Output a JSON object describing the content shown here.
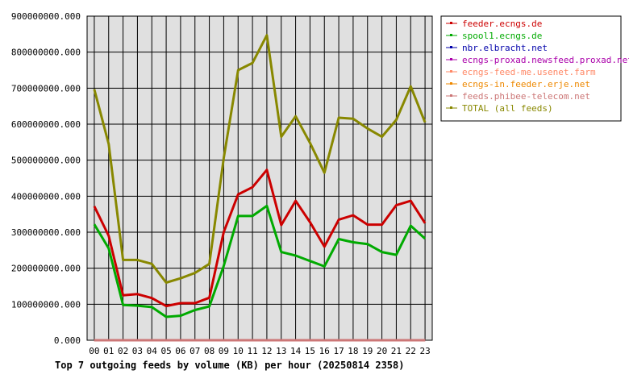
{
  "chart_data": {
    "type": "line",
    "title": "Top 7 outgoing feeds by volume (KB) per hour (20250814 2358)",
    "x": [
      "00",
      "01",
      "02",
      "03",
      "04",
      "05",
      "06",
      "07",
      "08",
      "09",
      "10",
      "11",
      "12",
      "13",
      "14",
      "15",
      "16",
      "17",
      "18",
      "19",
      "20",
      "21",
      "22",
      "23"
    ],
    "ylim": [
      0,
      900000000
    ],
    "yticks": [
      "0.000",
      "100000000.000",
      "200000000.000",
      "300000000.000",
      "400000000.000",
      "500000000.000",
      "600000000.000",
      "700000000.000",
      "800000000.000",
      "900000000.000"
    ],
    "grid": true,
    "legend_position": "right",
    "series": [
      {
        "name": "feeder.ecngs.de",
        "color": "#cc0000",
        "values": [
          372000000,
          290000000,
          125000000,
          128000000,
          117000000,
          95000000,
          103000000,
          103000000,
          118000000,
          300000000,
          405000000,
          425000000,
          473000000,
          320000000,
          387000000,
          328000000,
          260000000,
          335000000,
          347000000,
          321000000,
          321000000,
          375000000,
          387000000,
          325000000
        ]
      },
      {
        "name": "spool1.ecngs.de",
        "color": "#00aa00",
        "values": [
          322000000,
          255000000,
          98000000,
          96000000,
          92000000,
          65000000,
          68000000,
          84000000,
          94000000,
          206000000,
          345000000,
          345000000,
          373000000,
          245000000,
          235000000,
          220000000,
          205000000,
          281000000,
          272000000,
          267000000,
          245000000,
          237000000,
          318000000,
          282000000
        ]
      },
      {
        "name": "nbr.elbracht.net",
        "color": "#0000aa",
        "values": [
          0,
          0,
          0,
          0,
          0,
          0,
          0,
          0,
          0,
          0,
          0,
          0,
          0,
          0,
          0,
          0,
          0,
          0,
          0,
          0,
          0,
          0,
          0,
          0
        ]
      },
      {
        "name": "ecngs-proxad.newsfeed.proxad.net",
        "color": "#aa00aa",
        "values": [
          0,
          0,
          0,
          0,
          0,
          0,
          0,
          0,
          0,
          0,
          0,
          0,
          0,
          0,
          0,
          0,
          0,
          0,
          0,
          0,
          0,
          0,
          0,
          0
        ]
      },
      {
        "name": "ecngs-feed-me.usenet.farm",
        "color": "#ff8866",
        "values": [
          0,
          0,
          0,
          0,
          0,
          0,
          0,
          0,
          0,
          0,
          0,
          0,
          0,
          0,
          0,
          0,
          0,
          0,
          0,
          0,
          0,
          0,
          0,
          0
        ]
      },
      {
        "name": "ecngs-in.feeder.erje.net",
        "color": "#ee8800",
        "values": [
          0,
          0,
          0,
          0,
          0,
          0,
          0,
          0,
          0,
          0,
          0,
          0,
          0,
          0,
          0,
          0,
          0,
          0,
          0,
          0,
          0,
          0,
          0,
          0
        ]
      },
      {
        "name": "feeds.phibee-telecom.net",
        "color": "#cc7777",
        "values": [
          0,
          0,
          0,
          0,
          0,
          0,
          0,
          0,
          0,
          0,
          0,
          0,
          0,
          0,
          0,
          0,
          0,
          0,
          0,
          0,
          0,
          0,
          0,
          0
        ]
      },
      {
        "name": "TOTAL (all feeds)",
        "color": "#888800",
        "values": [
          697000000,
          545000000,
          223000000,
          223000000,
          212000000,
          160000000,
          172000000,
          187000000,
          212000000,
          505000000,
          750000000,
          770000000,
          847000000,
          565000000,
          622000000,
          548000000,
          465000000,
          618000000,
          615000000,
          588000000,
          565000000,
          612000000,
          705000000,
          605000000
        ]
      }
    ]
  }
}
